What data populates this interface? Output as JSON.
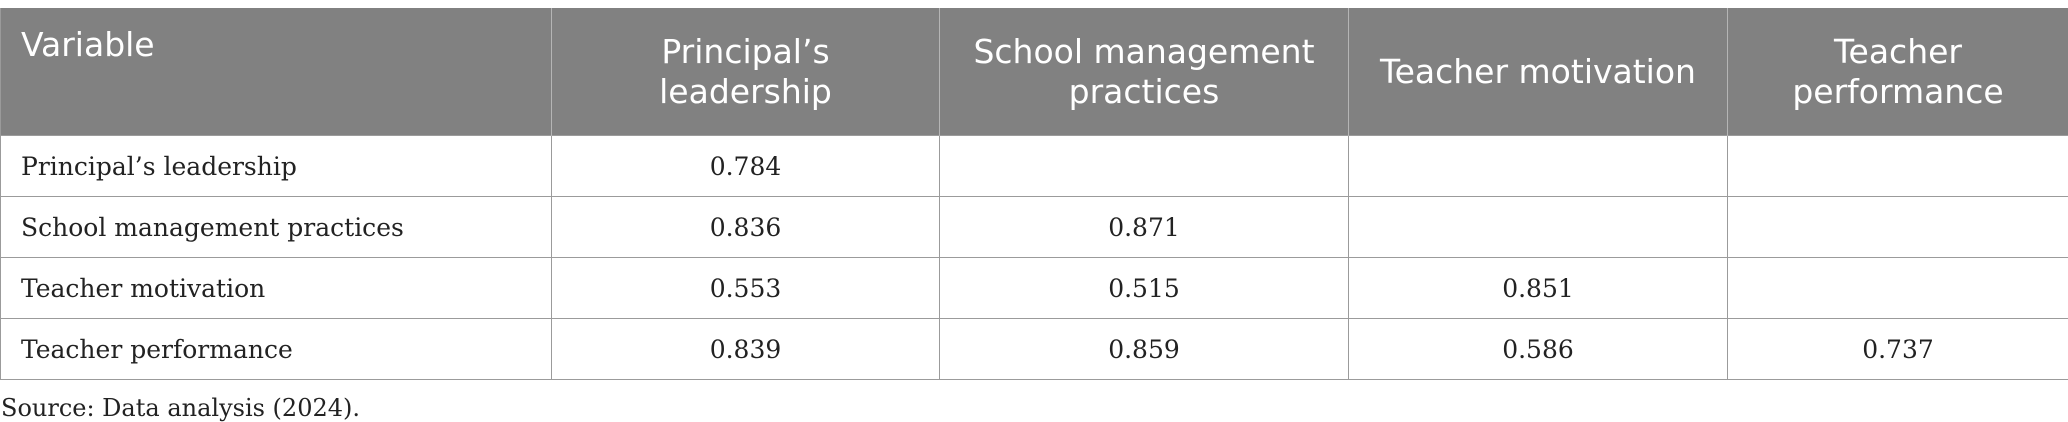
{
  "table": {
    "headers": [
      "Variable",
      "Principal’s leadership",
      "School management practices",
      "Teacher motivation",
      "Teacher performance"
    ],
    "rows": [
      {
        "variable": "Principal’s leadership",
        "c1": "0.784",
        "c2": "",
        "c3": "",
        "c4": ""
      },
      {
        "variable": "School management practices",
        "c1": "0.836",
        "c2": "0.871",
        "c3": "",
        "c4": ""
      },
      {
        "variable": "Teacher motivation",
        "c1": "0.553",
        "c2": "0.515",
        "c3": "0.851",
        "c4": ""
      },
      {
        "variable": "Teacher performance",
        "c1": "0.839",
        "c2": "0.859",
        "c3": "0.586",
        "c4": "0.737"
      }
    ]
  },
  "footnote": "Source: Data analysis (2024)."
}
